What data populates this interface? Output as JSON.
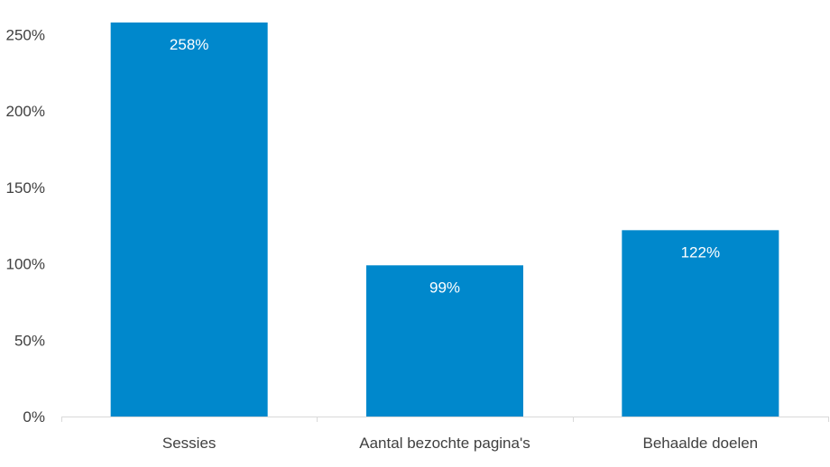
{
  "chart_data": {
    "type": "bar",
    "categories": [
      "Sessies",
      "Aantal bezochte pagina's",
      "Behaalde doelen"
    ],
    "values": [
      258,
      99,
      122
    ],
    "data_labels": [
      "258%",
      "99%",
      "122%"
    ],
    "title": "",
    "xlabel": "",
    "ylabel": "",
    "ylim": [
      0,
      260
    ],
    "yticks": [
      0,
      50,
      100,
      150,
      200,
      250
    ],
    "ytick_labels": [
      "0%",
      "50%",
      "100%",
      "150%",
      "200%",
      "250%"
    ],
    "grid": false,
    "legend": "none",
    "colors": {
      "bar": "#0088CC",
      "axis": "#D9D9D9",
      "text": "#404040",
      "data_label": "#FFFFFF"
    }
  }
}
